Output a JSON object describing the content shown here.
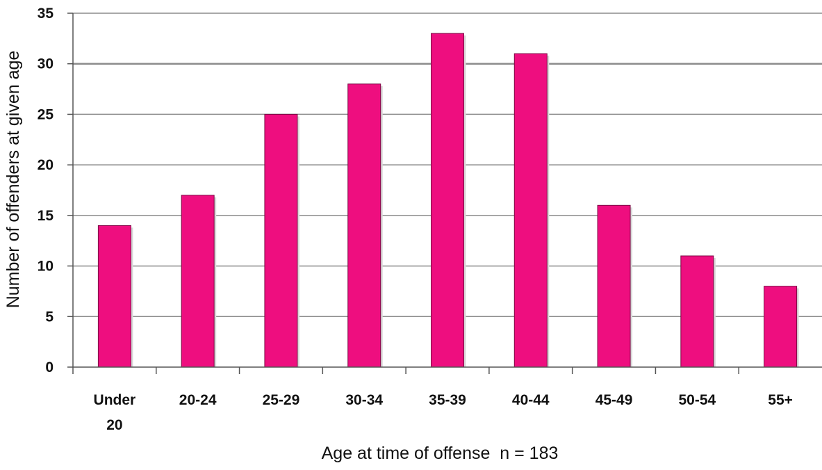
{
  "chart_data": {
    "type": "bar",
    "categories": [
      [
        "Under",
        "20"
      ],
      [
        "20-24"
      ],
      [
        "25-29"
      ],
      [
        "30-34"
      ],
      [
        "35-39"
      ],
      [
        "40-44"
      ],
      [
        "45-49"
      ],
      [
        "50-54"
      ],
      [
        "55+"
      ]
    ],
    "values": [
      14,
      17,
      25,
      28,
      33,
      31,
      16,
      11,
      8
    ],
    "ylim": [
      0,
      35
    ],
    "yticks": [
      0,
      5,
      10,
      15,
      20,
      25,
      30,
      35
    ],
    "ylabel": "Number of offenders at given age",
    "xlabel": "Age at time of offense  n = 183",
    "grid": true,
    "legend": "none",
    "colors": {
      "bar": "#ee0e7f",
      "bar_outline": "#7a0a44",
      "gridline": "#8c8c8c",
      "axis": "#555555"
    }
  }
}
